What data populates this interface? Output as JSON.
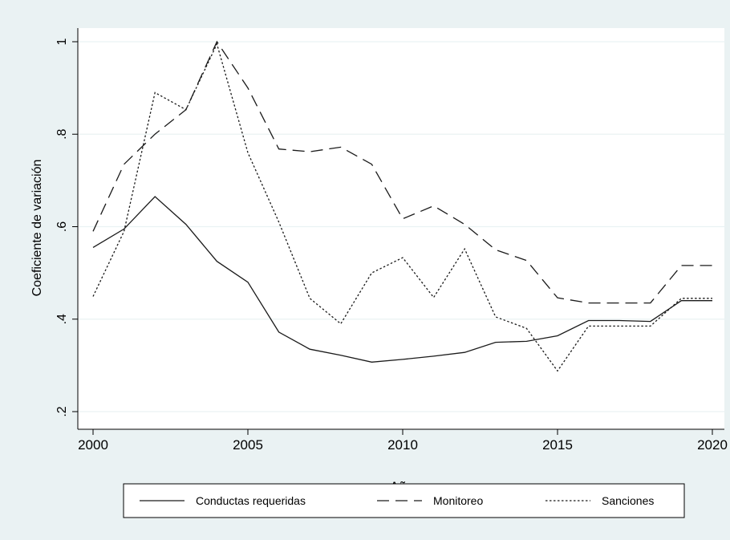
{
  "chart_data": {
    "type": "line",
    "title": "",
    "xlabel": "Año",
    "ylabel": "Coeficiente de variación",
    "xlim": [
      2000,
      2020
    ],
    "ylim": [
      0.2,
      1.0
    ],
    "x_ticks": [
      2000,
      2005,
      2010,
      2015,
      2020
    ],
    "x_tick_labels": [
      "2000",
      "2005",
      "2010",
      "2015",
      "2020"
    ],
    "y_ticks": [
      0.2,
      0.4,
      0.6,
      0.8,
      1.0
    ],
    "y_tick_labels": [
      ".2",
      ".4",
      ".6",
      ".8",
      "1"
    ],
    "grid": true,
    "legend_position": "bottom",
    "x": [
      2000,
      2001,
      2002,
      2003,
      2004,
      2005,
      2006,
      2007,
      2008,
      2009,
      2010,
      2011,
      2012,
      2013,
      2014,
      2015,
      2016,
      2017,
      2018,
      2019,
      2020
    ],
    "series": [
      {
        "name": "Conductas requeridas",
        "dash": "solid",
        "values": [
          0.555,
          0.595,
          0.665,
          0.605,
          0.525,
          0.48,
          0.372,
          0.335,
          0.322,
          0.307,
          0.313,
          0.32,
          0.328,
          0.35,
          0.352,
          0.364,
          0.397,
          0.397,
          0.395,
          0.44,
          0.44
        ]
      },
      {
        "name": "Monitoreo",
        "dash": "dashed",
        "values": [
          0.59,
          0.735,
          0.8,
          0.853,
          1.0,
          0.9,
          0.768,
          0.762,
          0.772,
          0.735,
          0.617,
          0.645,
          0.605,
          0.55,
          0.527,
          0.446,
          0.435,
          0.435,
          0.435,
          0.516,
          0.516
        ]
      },
      {
        "name": "Sanciones",
        "dash": "dotted",
        "values": [
          0.449,
          0.59,
          0.89,
          0.853,
          0.995,
          0.76,
          0.61,
          0.445,
          0.39,
          0.5,
          0.533,
          0.447,
          0.552,
          0.405,
          0.38,
          0.288,
          0.385,
          0.385,
          0.385,
          0.445,
          0.445
        ]
      }
    ]
  }
}
